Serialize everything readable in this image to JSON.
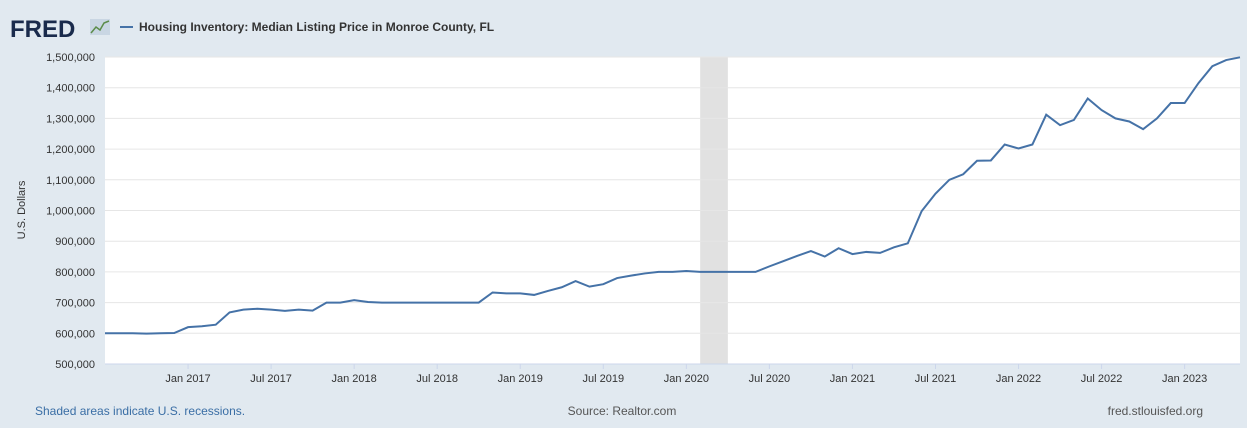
{
  "logo": "FRED",
  "chart_data": {
    "type": "line",
    "series": [
      {
        "name": "Housing Inventory: Median Listing Price in Monroe County, FL",
        "color": "#4572a7",
        "values": [
          600000,
          600000,
          600000,
          599000,
          600000,
          601000,
          620000,
          623000,
          628000,
          668000,
          677000,
          680000,
          677000,
          673000,
          677000,
          674000,
          700000,
          700000,
          708000,
          702000,
          700000,
          700000,
          700000,
          700000,
          700000,
          700000,
          700000,
          700000,
          733000,
          730000,
          730000,
          725000,
          738000,
          750000,
          770000,
          752000,
          760000,
          780000,
          788000,
          795000,
          800000,
          800000,
          803000,
          800000,
          800000,
          800000,
          800000,
          800000,
          818000,
          835000,
          852000,
          868000,
          850000,
          877000,
          858000,
          865000,
          862000,
          880000,
          893000,
          998000,
          1055000,
          1100000,
          1118000,
          1162000,
          1163000,
          1215000,
          1202000,
          1215000,
          1312000,
          1278000,
          1295000,
          1365000,
          1327000,
          1300000,
          1290000,
          1265000,
          1300000,
          1350000,
          1350000,
          1415000,
          1470000,
          1490000,
          1499000
        ]
      }
    ],
    "x": [
      "2016-07",
      "2016-08",
      "2016-09",
      "2016-10",
      "2016-11",
      "2016-12",
      "2017-01",
      "2017-02",
      "2017-03",
      "2017-04",
      "2017-05",
      "2017-06",
      "2017-07",
      "2017-08",
      "2017-09",
      "2017-10",
      "2017-11",
      "2017-12",
      "2018-01",
      "2018-02",
      "2018-03",
      "2018-04",
      "2018-05",
      "2018-06",
      "2018-07",
      "2018-08",
      "2018-09",
      "2018-10",
      "2018-11",
      "2018-12",
      "2019-01",
      "2019-02",
      "2019-03",
      "2019-04",
      "2019-05",
      "2019-06",
      "2019-07",
      "2019-08",
      "2019-09",
      "2019-10",
      "2019-11",
      "2019-12",
      "2020-01",
      "2020-02",
      "2020-03",
      "2020-04",
      "2020-05",
      "2020-06",
      "2020-07",
      "2020-08",
      "2020-09",
      "2020-10",
      "2020-11",
      "2020-12",
      "2021-01",
      "2021-02",
      "2021-03",
      "2021-04",
      "2021-05",
      "2021-06",
      "2021-07",
      "2021-08",
      "2021-09",
      "2021-10",
      "2021-11",
      "2021-12",
      "2022-01",
      "2022-02",
      "2022-03",
      "2022-04",
      "2022-05",
      "2022-06",
      "2022-07",
      "2022-08",
      "2022-09",
      "2022-10",
      "2022-11",
      "2022-12",
      "2023-01",
      "2023-02",
      "2023-03",
      "2023-04",
      "2023-05"
    ],
    "xlim": [
      "2016-07",
      "2023-05"
    ],
    "xticks": [
      {
        "value": "2017-01",
        "label": "Jan 2017"
      },
      {
        "value": "2017-07",
        "label": "Jul 2017"
      },
      {
        "value": "2018-01",
        "label": "Jan 2018"
      },
      {
        "value": "2018-07",
        "label": "Jul 2018"
      },
      {
        "value": "2019-01",
        "label": "Jan 2019"
      },
      {
        "value": "2019-07",
        "label": "Jul 2019"
      },
      {
        "value": "2020-01",
        "label": "Jan 2020"
      },
      {
        "value": "2020-07",
        "label": "Jul 2020"
      },
      {
        "value": "2021-01",
        "label": "Jan 2021"
      },
      {
        "value": "2021-07",
        "label": "Jul 2021"
      },
      {
        "value": "2022-01",
        "label": "Jan 2022"
      },
      {
        "value": "2022-07",
        "label": "Jul 2022"
      },
      {
        "value": "2023-01",
        "label": "Jan 2023"
      }
    ],
    "ylim": [
      500000,
      1500000
    ],
    "yticks": [
      {
        "value": 500000,
        "label": "500,000"
      },
      {
        "value": 600000,
        "label": "600,000"
      },
      {
        "value": 700000,
        "label": "700,000"
      },
      {
        "value": 800000,
        "label": "800,000"
      },
      {
        "value": 900000,
        "label": "900,000"
      },
      {
        "value": 1000000,
        "label": "1,000,000"
      },
      {
        "value": 1100000,
        "label": "1,100,000"
      },
      {
        "value": 1200000,
        "label": "1,200,000"
      },
      {
        "value": 1300000,
        "label": "1,300,000"
      },
      {
        "value": 1400000,
        "label": "1,400,000"
      },
      {
        "value": 1500000,
        "label": "1,500,000"
      }
    ],
    "ylabel": "U.S. Dollars",
    "grid": true,
    "recessions": [
      {
        "start": "2020-02",
        "end": "2020-04"
      }
    ]
  },
  "footer": {
    "note": "Shaded areas indicate U.S. recessions.",
    "source": "Source: Realtor.com",
    "site": "fred.stlouisfed.org"
  }
}
